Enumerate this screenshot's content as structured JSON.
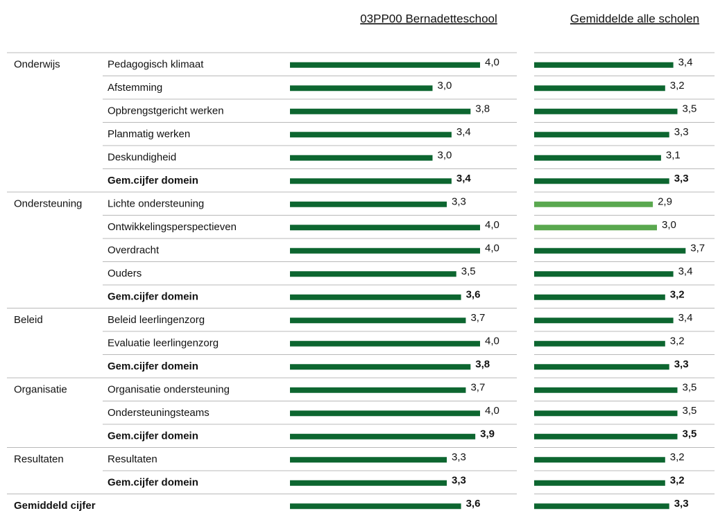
{
  "columns": [
    "03PP00 Bernadetteschool",
    "Gemiddelde alle scholen"
  ],
  "xlim": [
    0,
    4
  ],
  "groups": [
    {
      "domain": "Onderwijs",
      "items": [
        {
          "label": "Pedagogisch klimaat",
          "values": [
            4.0,
            3.4
          ],
          "value_labels": [
            "4,0",
            "3,4"
          ],
          "colors": [
            "#0d6630",
            "#0d6630"
          ],
          "bold": false
        },
        {
          "label": "Afstemming",
          "values": [
            3.0,
            3.2
          ],
          "value_labels": [
            "3,0",
            "3,2"
          ],
          "colors": [
            "#0d6630",
            "#0d6630"
          ],
          "bold": false
        },
        {
          "label": "Opbrengstgericht werken",
          "values": [
            3.8,
            3.5
          ],
          "value_labels": [
            "3,8",
            "3,5"
          ],
          "colors": [
            "#0d6630",
            "#0d6630"
          ],
          "bold": false
        },
        {
          "label": "Planmatig werken",
          "values": [
            3.4,
            3.3
          ],
          "value_labels": [
            "3,4",
            "3,3"
          ],
          "colors": [
            "#0d6630",
            "#0d6630"
          ],
          "bold": false
        },
        {
          "label": "Deskundigheid",
          "values": [
            3.0,
            3.1
          ],
          "value_labels": [
            "3,0",
            "3,1"
          ],
          "colors": [
            "#0d6630",
            "#0d6630"
          ],
          "bold": false
        },
        {
          "label": "Gem.cijfer domein",
          "values": [
            3.4,
            3.3
          ],
          "value_labels": [
            "3,4",
            "3,3"
          ],
          "colors": [
            "#0d6630",
            "#0d6630"
          ],
          "bold": true
        }
      ]
    },
    {
      "domain": "Ondersteuning",
      "items": [
        {
          "label": "Lichte ondersteuning",
          "values": [
            3.3,
            2.9
          ],
          "value_labels": [
            "3,3",
            "2,9"
          ],
          "colors": [
            "#0d6630",
            "#5aa84f"
          ],
          "bold": false
        },
        {
          "label": "Ontwikkelingsperspectieven",
          "values": [
            4.0,
            3.0
          ],
          "value_labels": [
            "4,0",
            "3,0"
          ],
          "colors": [
            "#0d6630",
            "#5aa84f"
          ],
          "bold": false
        },
        {
          "label": "Overdracht",
          "values": [
            4.0,
            3.7
          ],
          "value_labels": [
            "4,0",
            "3,7"
          ],
          "colors": [
            "#0d6630",
            "#0d6630"
          ],
          "bold": false
        },
        {
          "label": "Ouders",
          "values": [
            3.5,
            3.4
          ],
          "value_labels": [
            "3,5",
            "3,4"
          ],
          "colors": [
            "#0d6630",
            "#0d6630"
          ],
          "bold": false
        },
        {
          "label": "Gem.cijfer domein",
          "values": [
            3.6,
            3.2
          ],
          "value_labels": [
            "3,6",
            "3,2"
          ],
          "colors": [
            "#0d6630",
            "#0d6630"
          ],
          "bold": true
        }
      ]
    },
    {
      "domain": "Beleid",
      "items": [
        {
          "label": "Beleid leerlingenzorg",
          "values": [
            3.7,
            3.4
          ],
          "value_labels": [
            "3,7",
            "3,4"
          ],
          "colors": [
            "#0d6630",
            "#0d6630"
          ],
          "bold": false
        },
        {
          "label": "Evaluatie leerlingenzorg",
          "values": [
            4.0,
            3.2
          ],
          "value_labels": [
            "4,0",
            "3,2"
          ],
          "colors": [
            "#0d6630",
            "#0d6630"
          ],
          "bold": false
        },
        {
          "label": "Gem.cijfer domein",
          "values": [
            3.8,
            3.3
          ],
          "value_labels": [
            "3,8",
            "3,3"
          ],
          "colors": [
            "#0d6630",
            "#0d6630"
          ],
          "bold": true
        }
      ]
    },
    {
      "domain": "Organisatie",
      "items": [
        {
          "label": "Organisatie ondersteuning",
          "values": [
            3.7,
            3.5
          ],
          "value_labels": [
            "3,7",
            "3,5"
          ],
          "colors": [
            "#0d6630",
            "#0d6630"
          ],
          "bold": false
        },
        {
          "label": "Ondersteuningsteams",
          "values": [
            4.0,
            3.5
          ],
          "value_labels": [
            "4,0",
            "3,5"
          ],
          "colors": [
            "#0d6630",
            "#0d6630"
          ],
          "bold": false
        },
        {
          "label": "Gem.cijfer domein",
          "values": [
            3.9,
            3.5
          ],
          "value_labels": [
            "3,9",
            "3,5"
          ],
          "colors": [
            "#0d6630",
            "#0d6630"
          ],
          "bold": true
        }
      ]
    },
    {
      "domain": "Resultaten",
      "items": [
        {
          "label": "Resultaten",
          "values": [
            3.3,
            3.2
          ],
          "value_labels": [
            "3,3",
            "3,2"
          ],
          "colors": [
            "#0d6630",
            "#0d6630"
          ],
          "bold": false
        },
        {
          "label": "Gem.cijfer domein",
          "values": [
            3.3,
            3.2
          ],
          "value_labels": [
            "3,3",
            "3,2"
          ],
          "colors": [
            "#0d6630",
            "#0d6630"
          ],
          "bold": true
        }
      ]
    }
  ],
  "total": {
    "label": "Gemiddeld cijfer",
    "values": [
      3.6,
      3.3
    ],
    "value_labels": [
      "3,6",
      "3,3"
    ],
    "colors": [
      "#0d6630",
      "#0d6630"
    ],
    "bold": true
  }
}
